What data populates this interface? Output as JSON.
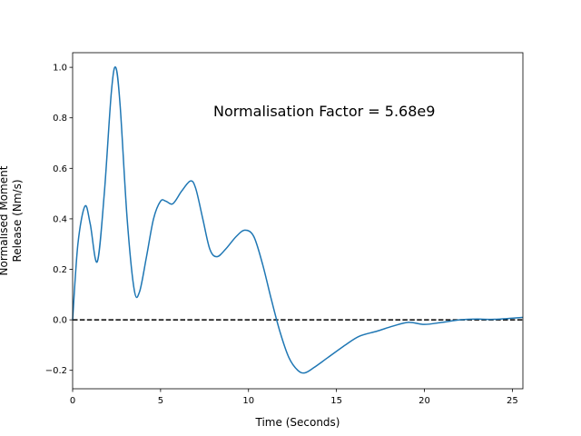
{
  "chart_data": {
    "type": "line",
    "x_label": "Time (Seconds)",
    "y_label": [
      "Normalised Moment",
      "Release (Nm/s)"
    ],
    "annotation": "Normalisation Factor = 5.68e9",
    "annotation_at": [
      8,
      0.82
    ],
    "x": [
      0,
      0.3,
      0.7,
      1.0,
      1.4,
      1.8,
      2.2,
      2.45,
      2.7,
      3.1,
      3.5,
      3.8,
      4.2,
      4.6,
      5.0,
      5.3,
      5.7,
      6.2,
      6.7,
      7.0,
      7.4,
      7.8,
      8.2,
      8.7,
      9.3,
      9.8,
      10.3,
      10.8,
      11.3,
      11.8,
      12.3,
      12.8,
      13.2,
      13.7,
      14.5,
      15.5,
      16.3,
      17.3,
      18.2,
      19.1,
      20.0,
      21.0,
      22.0,
      23.0,
      24.0,
      25.6
    ],
    "series": [
      {
        "name": "moment release",
        "color": "#1f77b4",
        "values": [
          0,
          0.3,
          0.45,
          0.38,
          0.23,
          0.5,
          0.9,
          1.0,
          0.85,
          0.4,
          0.12,
          0.11,
          0.25,
          0.4,
          0.47,
          0.47,
          0.46,
          0.51,
          0.55,
          0.52,
          0.4,
          0.28,
          0.25,
          0.28,
          0.33,
          0.355,
          0.33,
          0.22,
          0.08,
          -0.05,
          -0.15,
          -0.2,
          -0.21,
          -0.19,
          -0.15,
          -0.1,
          -0.065,
          -0.045,
          -0.025,
          -0.01,
          -0.018,
          -0.01,
          0.0,
          0.003,
          0.002,
          0.01
        ]
      }
    ],
    "hline": 0,
    "hline_color": "#000000",
    "xlim": [
      0,
      25.6
    ],
    "ylim": [
      -0.273,
      1.058
    ],
    "xticks": [
      0,
      5,
      10,
      15,
      20,
      25
    ],
    "yticks": [
      {
        "value": -0.2,
        "label": "−0.2"
      },
      {
        "value": 0,
        "label": "0.0"
      },
      {
        "value": 0.2,
        "label": "0.2"
      },
      {
        "value": 0.4,
        "label": "0.4"
      },
      {
        "value": 0.6,
        "label": "0.6"
      },
      {
        "value": 0.8,
        "label": "0.8"
      },
      {
        "value": 1.0,
        "label": "1.0"
      }
    ],
    "grid": false
  }
}
